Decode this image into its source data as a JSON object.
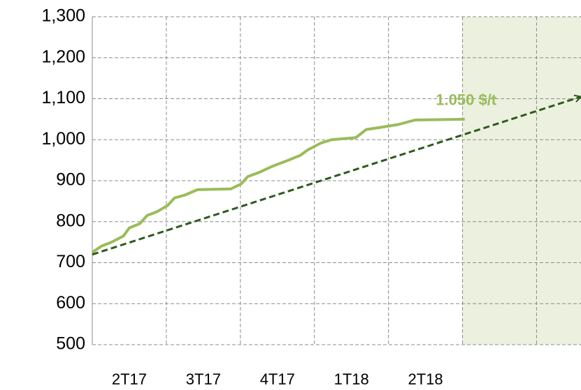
{
  "chart_data": {
    "type": "line",
    "annotation": "1.050 $/t",
    "xlim": [
      0,
      6.6
    ],
    "xticks": [
      {
        "value": 0.5,
        "label": "2T17"
      },
      {
        "value": 1.5,
        "label": "3T17"
      },
      {
        "value": 2.5,
        "label": "4T17"
      },
      {
        "value": 3.5,
        "label": "1T18"
      },
      {
        "value": 4.5,
        "label": "2T18"
      }
    ],
    "ylim": [
      500,
      1300
    ],
    "yticks": [
      {
        "value": 500,
        "label": "500"
      },
      {
        "value": 600,
        "label": "600"
      },
      {
        "value": 700,
        "label": "700"
      },
      {
        "value": 800,
        "label": "800"
      },
      {
        "value": 900,
        "label": "900"
      },
      {
        "value": 1000,
        "label": "1,000"
      },
      {
        "value": 1100,
        "label": "1,100"
      },
      {
        "value": 1200,
        "label": "1,200"
      },
      {
        "value": 1300,
        "label": "1,300"
      }
    ],
    "grid": true,
    "shaded_from": 5,
    "shade_color": "#ebf1de",
    "series": [
      {
        "color": "#9bbb59",
        "x": [
          0,
          0.12,
          0.26,
          0.42,
          0.5,
          0.64,
          0.74,
          0.88,
          1.02,
          1.11,
          1.25,
          1.42,
          1.87,
          2.01,
          2.1,
          2.25,
          2.43,
          2.62,
          2.81,
          2.91,
          3.09,
          3.23,
          3.56,
          3.7,
          3.89,
          4.13,
          4.36,
          5.03
        ],
        "values": [
          725,
          740,
          750,
          765,
          785,
          795,
          815,
          825,
          840,
          858,
          865,
          878,
          880,
          892,
          910,
          920,
          935,
          948,
          962,
          975,
          992,
          1000,
          1005,
          1025,
          1030,
          1037,
          1048,
          1050
        ]
      },
      {
        "color": "#2d5a1b",
        "dashed": true,
        "arrow": true,
        "x": [
          0,
          6.6
        ],
        "values": [
          720,
          1105
        ]
      }
    ]
  }
}
